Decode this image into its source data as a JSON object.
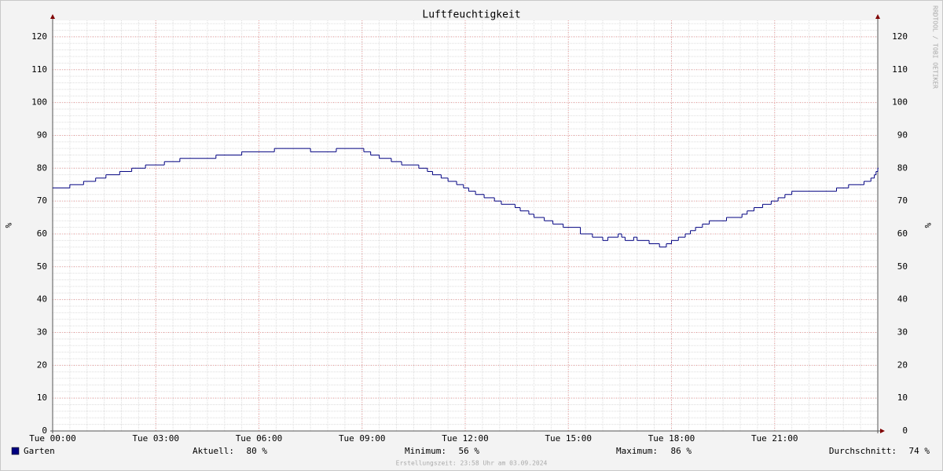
{
  "chart_data": {
    "type": "line",
    "title": "Luftfeuchtigkeit",
    "y_label": "%",
    "watermark": "RRDTOOL / TOBI OETIKER",
    "footer": "Erstellungszeit: 23:58 Uhr am 03.09.2024",
    "xlim": [
      0,
      24
    ],
    "xticks": [
      {
        "value": 0,
        "label": "Tue 00:00"
      },
      {
        "value": 3,
        "label": "Tue 03:00"
      },
      {
        "value": 6,
        "label": "Tue 06:00"
      },
      {
        "value": 9,
        "label": "Tue 09:00"
      },
      {
        "value": 12,
        "label": "Tue 12:00"
      },
      {
        "value": 15,
        "label": "Tue 15:00"
      },
      {
        "value": 18,
        "label": "Tue 18:00"
      },
      {
        "value": 21,
        "label": "Tue 21:00"
      }
    ],
    "ylim": [
      0,
      125
    ],
    "yticks": [
      0,
      10,
      20,
      30,
      40,
      50,
      60,
      70,
      80,
      90,
      100,
      110,
      120
    ],
    "grid": true,
    "step": true,
    "series": [
      {
        "name": "Garten",
        "color": "#000080",
        "x": [
          0,
          0.5,
          0.9,
          1.25,
          1.55,
          1.95,
          2.3,
          2.7,
          3.25,
          3.7,
          4.75,
          5.5,
          6.45,
          7.5,
          8.25,
          9.05,
          9.25,
          9.5,
          9.85,
          10.15,
          10.65,
          10.9,
          11.05,
          11.3,
          11.5,
          11.75,
          11.95,
          12.1,
          12.3,
          12.55,
          12.85,
          13.05,
          13.45,
          13.6,
          13.85,
          14.0,
          14.3,
          14.55,
          14.85,
          15.35,
          15.7,
          16.0,
          16.15,
          16.45,
          16.55,
          16.65,
          16.9,
          17.0,
          17.35,
          17.65,
          17.85,
          18.0,
          18.2,
          18.4,
          18.55,
          18.7,
          18.9,
          19.1,
          19.6,
          20.05,
          20.2,
          20.4,
          20.65,
          20.9,
          21.1,
          21.3,
          21.5,
          22.8,
          23.15,
          23.6,
          23.8,
          23.9,
          23.95,
          24
        ],
        "values": [
          74,
          75,
          76,
          77,
          78,
          79,
          80,
          81,
          82,
          83,
          84,
          85,
          86,
          85,
          86,
          85,
          84,
          83,
          82,
          81,
          80,
          79,
          78,
          77,
          76,
          75,
          74,
          73,
          72,
          71,
          70,
          69,
          68,
          67,
          66,
          65,
          64,
          63,
          62,
          60,
          59,
          58,
          59,
          60,
          59,
          58,
          59,
          58,
          57,
          56,
          57,
          58,
          59,
          60,
          61,
          62,
          63,
          64,
          65,
          66,
          67,
          68,
          69,
          70,
          71,
          72,
          73,
          74,
          75,
          76,
          77,
          78,
          79,
          80
        ]
      }
    ],
    "stats": [
      {
        "label": "Aktuell:",
        "value": "80 %"
      },
      {
        "label": "Minimum:",
        "value": "56 %"
      },
      {
        "label": "Maximum:",
        "value": "86 %"
      },
      {
        "label": "Durchschnitt:",
        "value": "74 %"
      }
    ]
  }
}
